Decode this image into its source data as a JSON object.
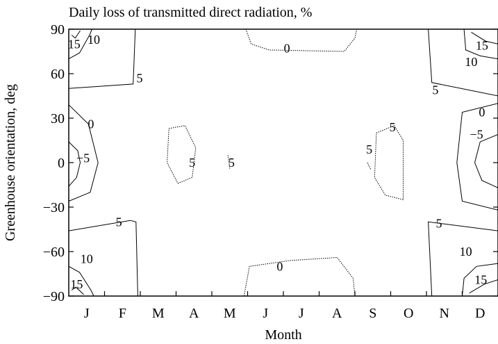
{
  "chart_data": {
    "type": "contour",
    "title": "Daily loss of transmitted direct radiation, %",
    "xlabel": "Month",
    "ylabel": "Greenhouse orientation, deg",
    "categories": [
      "J",
      "F",
      "M",
      "A",
      "M",
      "J",
      "J",
      "A",
      "S",
      "O",
      "N",
      "D"
    ],
    "xlim": [
      0,
      12
    ],
    "ylim": [
      -90,
      90
    ],
    "yticks": [
      90,
      60,
      30,
      0,
      -30,
      -60,
      -90
    ],
    "ytick_labels": [
      "90",
      "60",
      "30",
      "0",
      "−30",
      "−60",
      "−90"
    ],
    "grid": false,
    "legend": "none",
    "contours": [
      {
        "level": "15",
        "lines": [
          [
            [
              0.08,
              86
            ],
            [
              0.18,
              84
            ],
            [
              0.32,
              89
            ]
          ],
          [
            [
              0.08,
              -86
            ],
            [
              0.2,
              -84
            ],
            [
              0.42,
              -89
            ]
          ],
          [
            [
              11.25,
              88
            ],
            [
              11.65,
              82
            ],
            [
              12,
              80
            ]
          ],
          [
            [
              11.2,
              -88
            ],
            [
              11.62,
              -82
            ],
            [
              12,
              -79
            ]
          ]
        ]
      },
      {
        "level": "10",
        "lines": [
          [
            [
              0,
              70
            ],
            [
              0.3,
              74
            ],
            [
              0.58,
              86
            ],
            [
              0.65,
              90
            ]
          ],
          [
            [
              0,
              -70
            ],
            [
              0.3,
              -74
            ],
            [
              0.62,
              -86
            ],
            [
              0.7,
              -90
            ]
          ],
          [
            [
              11.05,
              90
            ],
            [
              11.1,
              76
            ],
            [
              11.5,
              72
            ],
            [
              12,
              70
            ]
          ],
          [
            [
              11.0,
              -90
            ],
            [
              11.05,
              -78
            ],
            [
              11.4,
              -70
            ],
            [
              12,
              -68
            ]
          ]
        ]
      },
      {
        "level": "5",
        "lines": [
          [
            [
              0,
              50
            ],
            [
              1.8,
              53
            ],
            [
              1.86,
              90
            ]
          ],
          [
            [
              0,
              -46
            ],
            [
              1.72,
              -39
            ],
            [
              1.88,
              -40
            ],
            [
              1.93,
              -90
            ]
          ],
          [
            [
              10.05,
              90
            ],
            [
              10.15,
              54
            ],
            [
              12,
              45
            ]
          ],
          [
            [
              10.15,
              -90
            ],
            [
              10.05,
              -40
            ],
            [
              12,
              -46
            ]
          ],
          [
            [
              2.8,
              23
            ],
            [
              3.25,
              25
            ],
            [
              3.55,
              10
            ],
            [
              3.45,
              -10
            ],
            [
              3.05,
              -14
            ],
            [
              2.75,
              0
            ],
            [
              2.8,
              23
            ]
          ],
          [
            [
              4.45,
              5
            ],
            [
              4.5,
              -4
            ]
          ],
          [
            [
              8.6,
              20
            ],
            [
              9.1,
              25
            ],
            [
              9.35,
              15
            ],
            [
              9.35,
              -25
            ],
            [
              8.85,
              -22
            ],
            [
              8.55,
              -10
            ],
            [
              8.6,
              20
            ]
          ],
          [
            [
              8.35,
              0
            ],
            [
              8.45,
              -5
            ]
          ]
        ]
      },
      {
        "level": "0",
        "lines": [
          [
            [
              0,
              39
            ],
            [
              0.55,
              26
            ],
            [
              0.82,
              0
            ],
            [
              0.6,
              -20
            ],
            [
              0,
              -26
            ]
          ],
          [
            [
              12,
              40
            ],
            [
              11.0,
              34
            ],
            [
              10.85,
              0
            ],
            [
              11.0,
              -26
            ],
            [
              12,
              -32
            ]
          ],
          [
            [
              4.95,
              90
            ],
            [
              5.1,
              80
            ],
            [
              5.6,
              76
            ],
            [
              7.7,
              75
            ],
            [
              8.0,
              84
            ],
            [
              8.05,
              90
            ]
          ],
          [
            [
              4.9,
              -90
            ],
            [
              5.05,
              -70
            ],
            [
              6.2,
              -66
            ],
            [
              7.5,
              -64
            ],
            [
              7.95,
              -78
            ],
            [
              8.0,
              -90
            ]
          ]
        ]
      },
      {
        "level": "-5",
        "lines": [
          [
            [
              0,
              14
            ],
            [
              0.25,
              8
            ],
            [
              0.32,
              0
            ],
            [
              0.22,
              -10
            ],
            [
              0,
              -16
            ]
          ],
          [
            [
              12,
              19
            ],
            [
              11.5,
              14
            ],
            [
              11.35,
              0
            ],
            [
              11.55,
              -12
            ],
            [
              12,
              -17
            ]
          ]
        ]
      }
    ],
    "contour_labels": [
      {
        "text": "15",
        "x": 0.15,
        "y": 80
      },
      {
        "text": "10",
        "x": 0.7,
        "y": 83
      },
      {
        "text": "5",
        "x": 1.98,
        "y": 57
      },
      {
        "text": "0",
        "x": 6.1,
        "y": 77
      },
      {
        "text": "15",
        "x": 11.55,
        "y": 79
      },
      {
        "text": "10",
        "x": 11.25,
        "y": 68
      },
      {
        "text": "5",
        "x": 10.25,
        "y": 49
      },
      {
        "text": "0",
        "x": 11.55,
        "y": 34
      },
      {
        "text": "−5",
        "x": 11.4,
        "y": 19
      },
      {
        "text": "0",
        "x": 0.62,
        "y": 26
      },
      {
        "text": "−5",
        "x": 0.4,
        "y": 3
      },
      {
        "text": "5",
        "x": 3.45,
        "y": 0
      },
      {
        "text": "5",
        "x": 4.55,
        "y": 0
      },
      {
        "text": "5",
        "x": 8.4,
        "y": 9
      },
      {
        "text": "5",
        "x": 9.05,
        "y": 24
      },
      {
        "text": "5",
        "x": 1.4,
        "y": -40
      },
      {
        "text": "5",
        "x": 10.35,
        "y": -41
      },
      {
        "text": "10",
        "x": 0.5,
        "y": -65
      },
      {
        "text": "10",
        "x": 11.1,
        "y": -60
      },
      {
        "text": "15",
        "x": 0.22,
        "y": -82
      },
      {
        "text": "15",
        "x": 11.52,
        "y": -79
      },
      {
        "text": "0",
        "x": 5.9,
        "y": -70
      }
    ]
  }
}
